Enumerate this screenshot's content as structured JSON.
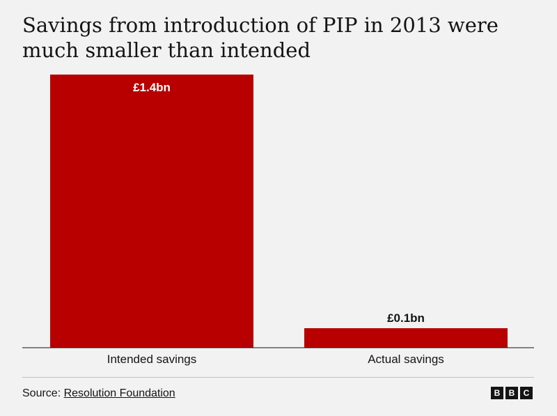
{
  "title": "Savings from introduction of PIP in 2013 were much smaller than intended",
  "chart_data": {
    "type": "bar",
    "categories": [
      "Intended savings",
      "Actual savings"
    ],
    "values": [
      1.4,
      0.1
    ],
    "value_labels": [
      "£1.4bn",
      "£0.1bn"
    ],
    "title": "Savings from introduction of PIP in 2013 were much smaller than intended",
    "xlabel": "",
    "ylabel": "",
    "ylim": [
      0,
      1.4
    ],
    "grid": false,
    "bar_color": "#b80000"
  },
  "footer": {
    "source_prefix": "Source: ",
    "source_name": "Resolution Foundation",
    "logo_letters": [
      "B",
      "B",
      "C"
    ]
  }
}
